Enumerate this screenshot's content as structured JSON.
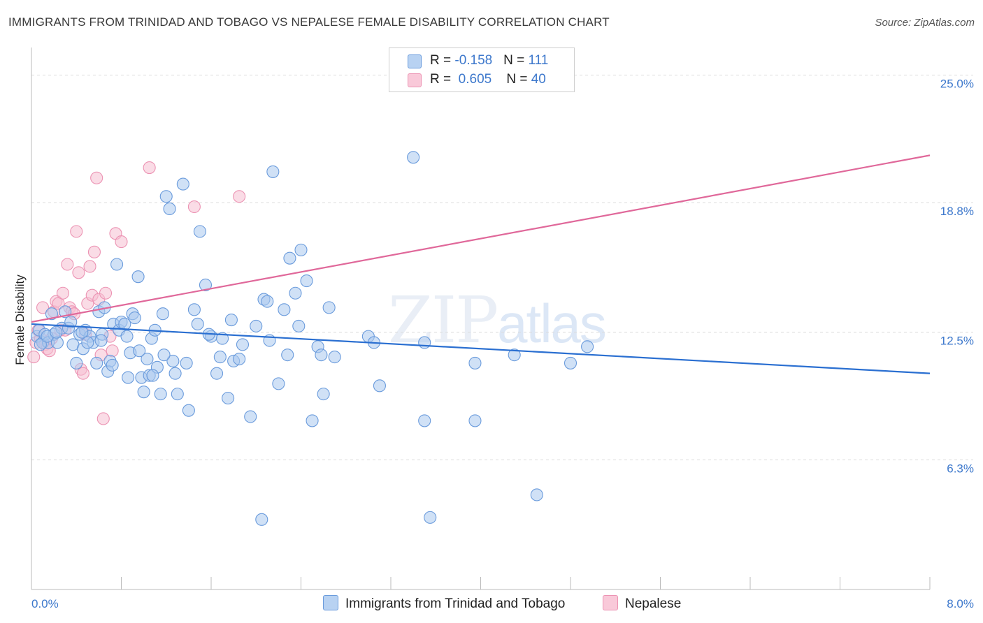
{
  "title": "IMMIGRANTS FROM TRINIDAD AND TOBAGO VS NEPALESE FEMALE DISABILITY CORRELATION CHART",
  "source": "Source: ZipAtlas.com",
  "watermark": {
    "zip": "ZIP",
    "atlas": "atlas"
  },
  "legend": {
    "series1": {
      "r_label": "R = ",
      "r_value": "-0.158",
      "n_label": "N = ",
      "n_value": "111",
      "color": "#6fa3e0"
    },
    "series2": {
      "r_label": "R = ",
      "r_value": "0.605",
      "n_label": "N = ",
      "n_value": "40",
      "color": "#f09ab8"
    }
  },
  "bottom_legend": {
    "series1": "Immigrants from Trinidad and Tobago",
    "series2": "Nepalese"
  },
  "chart_data": {
    "type": "scatter",
    "ylabel": "Female Disability",
    "xlim": [
      0.0,
      8.0
    ],
    "ylim": [
      0.0,
      26.0
    ],
    "x_tick_labels": [
      "0.0%",
      "8.0%"
    ],
    "y_ticks": [
      6.3,
      12.5,
      18.8,
      25.0
    ],
    "y_tick_labels": [
      "6.3%",
      "12.5%",
      "18.8%",
      "25.0%"
    ],
    "grid": true,
    "legend_position": "top-center",
    "colors": {
      "blue_fill": "#a9c8ee",
      "blue_stroke": "#6a9bdc",
      "blue_line": "#2a6fd1",
      "pink_fill": "#f6bfd1",
      "pink_stroke": "#ec93b3",
      "pink_line": "#e0689a"
    },
    "series": [
      {
        "name": "Immigrants from Trinidad and Tobago",
        "trend": [
          [
            0.0,
            12.9
          ],
          [
            8.0,
            10.5
          ]
        ],
        "points": [
          [
            0.05,
            12.3
          ],
          [
            0.07,
            12.6
          ],
          [
            0.1,
            12.0
          ],
          [
            0.12,
            12.4
          ],
          [
            0.15,
            12.0
          ],
          [
            0.18,
            13.4
          ],
          [
            0.2,
            12.4
          ],
          [
            0.23,
            12.0
          ],
          [
            0.27,
            12.7
          ],
          [
            0.3,
            13.5
          ],
          [
            0.33,
            12.7
          ],
          [
            0.37,
            11.9
          ],
          [
            0.4,
            11.0
          ],
          [
            0.43,
            12.4
          ],
          [
            0.46,
            11.7
          ],
          [
            0.48,
            12.6
          ],
          [
            0.52,
            12.3
          ],
          [
            0.55,
            12.0
          ],
          [
            0.58,
            11.0
          ],
          [
            0.6,
            13.5
          ],
          [
            0.63,
            12.4
          ],
          [
            0.65,
            13.7
          ],
          [
            0.68,
            10.6
          ],
          [
            0.7,
            11.1
          ],
          [
            0.73,
            12.9
          ],
          [
            0.76,
            15.8
          ],
          [
            0.78,
            12.6
          ],
          [
            0.8,
            13.0
          ],
          [
            0.83,
            12.9
          ],
          [
            0.85,
            12.3
          ],
          [
            0.86,
            10.3
          ],
          [
            0.9,
            13.4
          ],
          [
            0.92,
            13.2
          ],
          [
            0.95,
            15.2
          ],
          [
            0.98,
            10.3
          ],
          [
            1.0,
            9.6
          ],
          [
            1.03,
            11.2
          ],
          [
            1.05,
            10.4
          ],
          [
            1.07,
            12.2
          ],
          [
            1.1,
            12.6
          ],
          [
            1.12,
            10.8
          ],
          [
            1.15,
            9.5
          ],
          [
            1.17,
            13.4
          ],
          [
            1.2,
            19.1
          ],
          [
            1.23,
            18.5
          ],
          [
            1.26,
            11.1
          ],
          [
            1.3,
            9.5
          ],
          [
            1.35,
            19.7
          ],
          [
            1.4,
            8.7
          ],
          [
            1.45,
            13.6
          ],
          [
            1.5,
            17.4
          ],
          [
            1.55,
            14.8
          ],
          [
            1.6,
            12.3
          ],
          [
            1.65,
            10.5
          ],
          [
            1.7,
            12.2
          ],
          [
            1.75,
            9.3
          ],
          [
            1.8,
            11.1
          ],
          [
            1.85,
            11.2
          ],
          [
            1.95,
            8.4
          ],
          [
            2.0,
            12.8
          ],
          [
            2.05,
            3.4
          ],
          [
            2.07,
            14.1
          ],
          [
            2.1,
            14.0
          ],
          [
            2.15,
            20.3
          ],
          [
            2.2,
            10.0
          ],
          [
            2.25,
            13.6
          ],
          [
            2.3,
            16.1
          ],
          [
            2.35,
            14.4
          ],
          [
            2.4,
            16.5
          ],
          [
            2.45,
            15.0
          ],
          [
            2.5,
            8.2
          ],
          [
            2.55,
            11.8
          ],
          [
            2.6,
            9.5
          ],
          [
            2.65,
            13.7
          ],
          [
            3.0,
            12.3
          ],
          [
            3.05,
            12.0
          ],
          [
            3.1,
            9.9
          ],
          [
            3.4,
            21.0
          ],
          [
            3.5,
            8.2
          ],
          [
            3.5,
            12.0
          ],
          [
            3.55,
            3.5
          ],
          [
            3.95,
            8.2
          ],
          [
            3.95,
            11.0
          ],
          [
            4.3,
            11.4
          ],
          [
            4.5,
            4.6
          ],
          [
            4.8,
            11.0
          ],
          [
            4.95,
            11.8
          ],
          [
            0.08,
            11.9
          ],
          [
            0.14,
            12.3
          ],
          [
            0.22,
            12.5
          ],
          [
            0.35,
            13.0
          ],
          [
            0.45,
            12.5
          ],
          [
            0.5,
            12.0
          ],
          [
            0.62,
            12.1
          ],
          [
            0.72,
            10.9
          ],
          [
            0.88,
            11.5
          ],
          [
            0.96,
            11.6
          ],
          [
            1.08,
            10.4
          ],
          [
            1.18,
            11.4
          ],
          [
            1.28,
            10.5
          ],
          [
            1.38,
            11.0
          ],
          [
            1.48,
            12.9
          ],
          [
            1.58,
            12.4
          ],
          [
            1.68,
            11.3
          ],
          [
            1.78,
            13.1
          ],
          [
            1.88,
            11.9
          ],
          [
            2.12,
            12.1
          ],
          [
            2.28,
            11.4
          ],
          [
            2.38,
            12.8
          ],
          [
            2.58,
            11.4
          ],
          [
            2.7,
            11.3
          ]
        ]
      },
      {
        "name": "Nepalese",
        "trend": [
          [
            0.0,
            13.0
          ],
          [
            8.0,
            21.1
          ]
        ],
        "points": [
          [
            0.02,
            11.3
          ],
          [
            0.04,
            12.0
          ],
          [
            0.06,
            12.6
          ],
          [
            0.08,
            12.2
          ],
          [
            0.1,
            13.7
          ],
          [
            0.12,
            11.9
          ],
          [
            0.14,
            11.7
          ],
          [
            0.16,
            11.6
          ],
          [
            0.18,
            12.2
          ],
          [
            0.2,
            13.5
          ],
          [
            0.22,
            14.0
          ],
          [
            0.24,
            13.9
          ],
          [
            0.26,
            12.6
          ],
          [
            0.28,
            14.4
          ],
          [
            0.3,
            12.6
          ],
          [
            0.32,
            15.8
          ],
          [
            0.34,
            13.7
          ],
          [
            0.36,
            13.5
          ],
          [
            0.38,
            13.4
          ],
          [
            0.4,
            17.4
          ],
          [
            0.42,
            15.4
          ],
          [
            0.44,
            10.7
          ],
          [
            0.46,
            10.5
          ],
          [
            0.48,
            12.4
          ],
          [
            0.5,
            13.9
          ],
          [
            0.52,
            15.7
          ],
          [
            0.54,
            14.3
          ],
          [
            0.56,
            16.4
          ],
          [
            0.58,
            20.0
          ],
          [
            0.6,
            14.1
          ],
          [
            0.62,
            11.4
          ],
          [
            0.64,
            8.3
          ],
          [
            0.66,
            14.4
          ],
          [
            0.7,
            12.3
          ],
          [
            0.72,
            11.6
          ],
          [
            0.75,
            17.3
          ],
          [
            0.8,
            16.9
          ],
          [
            1.05,
            20.5
          ],
          [
            1.45,
            18.6
          ],
          [
            1.85,
            19.1
          ]
        ]
      }
    ]
  }
}
